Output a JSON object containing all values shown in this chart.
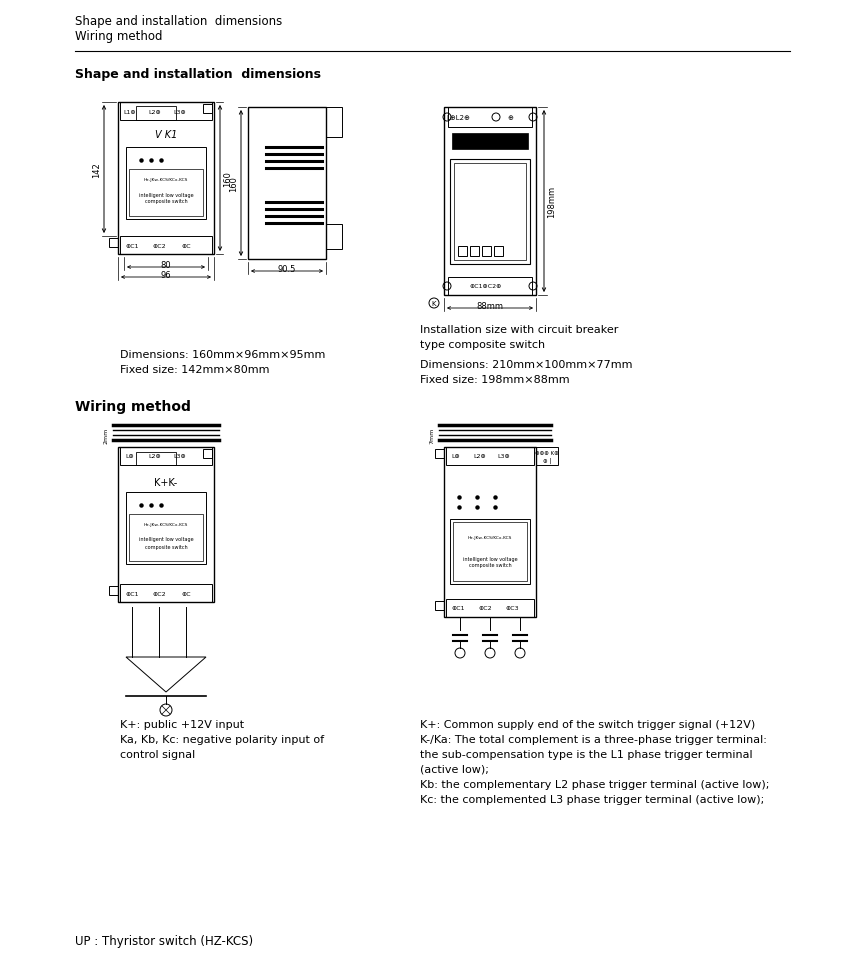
{
  "bg_color": "#ffffff",
  "title_line1": "Shape and installation  dimensions",
  "title_line2": "Wiring method",
  "section1_title": "Shape and installation  dimensions",
  "section2_title": "Wiring method",
  "dim1_line1": "Dimensions: 160mm×96mm×95mm",
  "dim1_line2": "Fixed size: 142mm×80mm",
  "dim2_caption1": "Installation size with circuit breaker",
  "dim2_caption2": "type composite switch",
  "dim2_line1": "Dimensions: 210mm×100mm×77mm",
  "dim2_line2": "Fixed size: 198mm×88mm",
  "wire1_line1": "K+: public +12V input",
  "wire1_line2": "Ka, Kb, Kc: negative polarity input of",
  "wire1_line3": "control signal",
  "wire2_line1": "K+: Common supply end of the switch trigger signal (+12V)",
  "wire2_line2": "K-/Ka: The total complement is a three-phase trigger terminal:",
  "wire2_line3": "the sub-compensation type is the L1 phase trigger terminal",
  "wire2_line4": "(active low);",
  "wire2_line5": "Kb: the complementary L2 phase trigger terminal (active low);",
  "wire2_line6": "Kc: the complemented L3 phase trigger terminal (active low);",
  "footer": "UP : Thyristor switch (HZ-KCS)"
}
